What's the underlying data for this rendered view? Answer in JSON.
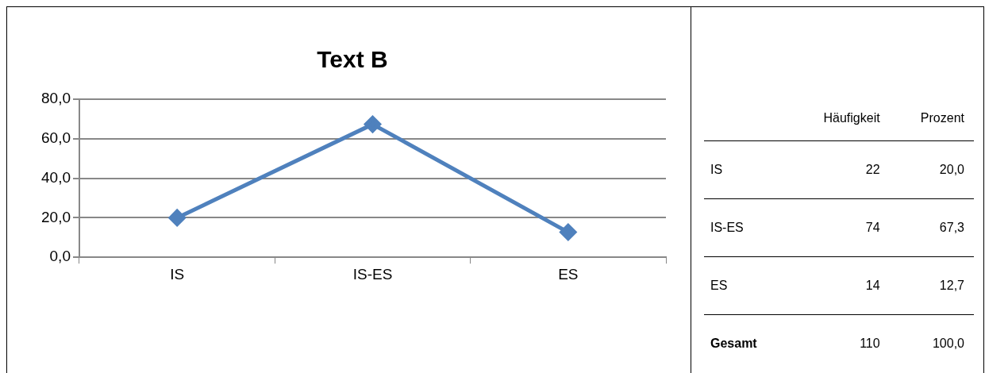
{
  "chart_data": [
    {
      "type": "line",
      "title": "Text B",
      "categories": [
        "IS",
        "IS-ES",
        "ES"
      ],
      "series": [
        {
          "color": "#4f81bd",
          "values": [
            20.0,
            67.3,
            12.7
          ]
        }
      ],
      "ylim": [
        0,
        80
      ],
      "yticks": [
        {
          "value": 0,
          "label": "0,0"
        },
        {
          "value": 20,
          "label": "20,0"
        },
        {
          "value": 40,
          "label": "40,0"
        },
        {
          "value": 60,
          "label": "60,0"
        },
        {
          "value": 80,
          "label": "80,0"
        }
      ],
      "grid": "y",
      "legend": false,
      "marker": "diamond",
      "line_style": "solid"
    },
    {
      "type": "other",
      "categories": [
        "IS",
        "IS-ES",
        "ES",
        "Gesamt"
      ],
      "series": [
        {
          "name": "Häufigkeit",
          "values": [
            22,
            74,
            14,
            110
          ],
          "value_labels": [
            "22",
            "74",
            "14",
            "110"
          ]
        },
        {
          "name": "Prozent",
          "values": [
            20.0,
            67.3,
            12.7,
            100.0
          ],
          "value_labels": [
            "20,0",
            "67,3",
            "12,7",
            "100,0"
          ]
        }
      ]
    }
  ]
}
